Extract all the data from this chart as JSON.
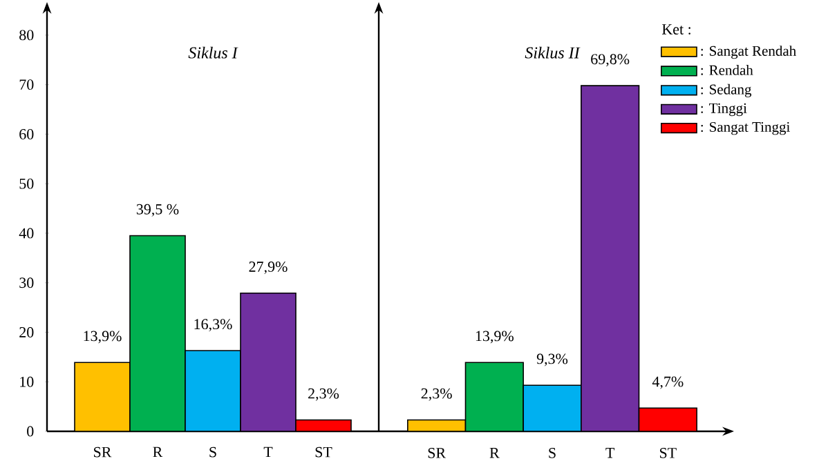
{
  "chart_data": [
    {
      "type": "bar",
      "title": "Siklus I",
      "categories": [
        "SR",
        "R",
        "S",
        "T",
        "ST"
      ],
      "values": [
        13.9,
        39.5,
        16.3,
        27.9,
        2.3
      ],
      "colors": [
        "#ffc000",
        "#00b050",
        "#00b0f0",
        "#7030a0",
        "#ff0000"
      ],
      "value_labels": [
        "13,9%",
        "39,5 %",
        "16,3%",
        "27,9%",
        "2,3%"
      ],
      "ylim": [
        0,
        85
      ],
      "yticks": [
        0,
        10,
        20,
        30,
        40,
        50,
        60,
        70,
        80
      ],
      "legend": false
    },
    {
      "type": "bar",
      "title": "Siklus II",
      "categories": [
        "SR",
        "R",
        "S",
        "T",
        "ST"
      ],
      "legend_title": "Ket :",
      "series": [
        {
          "name": ": Sangat Rendah",
          "color": "#ffc000",
          "values": [
            2.3,
            null,
            null,
            null,
            null
          ],
          "value_labels": [
            "2,3%",
            null,
            null,
            null,
            null
          ]
        },
        {
          "name": ": Rendah",
          "color": "#00b050",
          "values": [
            null,
            13.9,
            null,
            null,
            null
          ],
          "value_labels": [
            null,
            "13,9%",
            null,
            null,
            null
          ]
        },
        {
          "name": ": Sedang",
          "color": "#00b0f0",
          "values": [
            null,
            null,
            9.3,
            null,
            null
          ],
          "value_labels": [
            null,
            null,
            "9,3%",
            null,
            null
          ]
        },
        {
          "name": ": Tinggi",
          "color": "#7030a0",
          "values": [
            null,
            null,
            null,
            69.8,
            null
          ],
          "value_labels": [
            null,
            null,
            null,
            "69,8%",
            null
          ]
        },
        {
          "name": ": Sangat Tinggi",
          "color": "#ff0000",
          "values": [
            null,
            null,
            null,
            null,
            4.7
          ],
          "value_labels": [
            null,
            null,
            null,
            null,
            "4,7%"
          ]
        }
      ],
      "ylim": [
        0,
        85
      ],
      "yticks": [
        0,
        10,
        20,
        30,
        40,
        50,
        60,
        70,
        80
      ],
      "tick_labels": "x",
      "legend": "top right"
    }
  ]
}
